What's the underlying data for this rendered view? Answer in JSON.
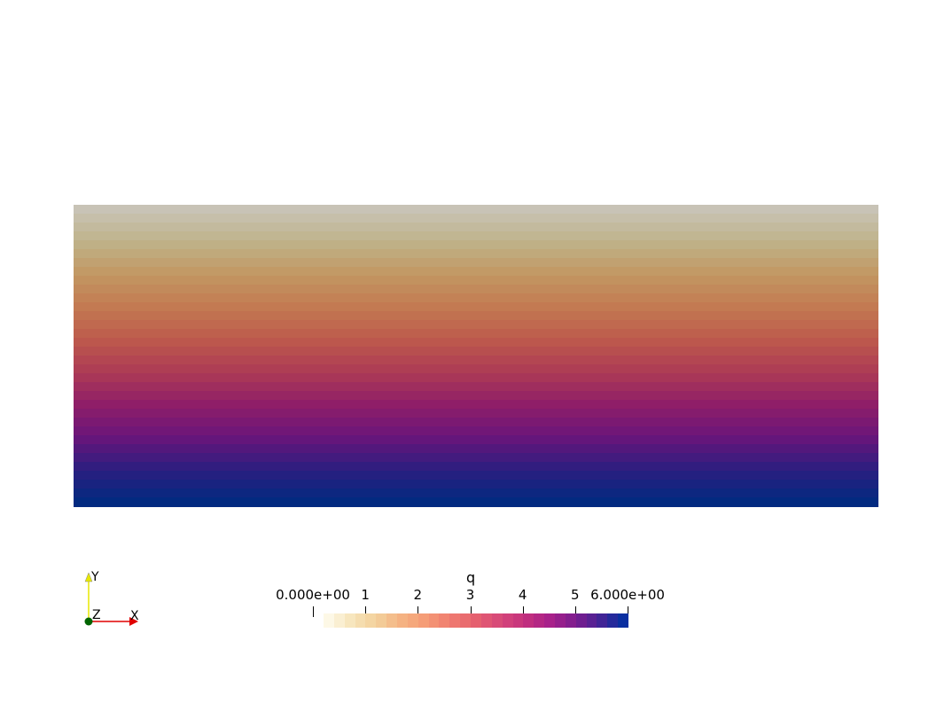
{
  "colorbar": {
    "title": "q",
    "range": [
      0,
      6
    ],
    "ticks": [
      {
        "value": 0,
        "label": "0.000e+00"
      },
      {
        "value": 1,
        "label": "1"
      },
      {
        "value": 2,
        "label": "2"
      },
      {
        "value": 3,
        "label": "3"
      },
      {
        "value": 4,
        "label": "4"
      },
      {
        "value": 5,
        "label": "5"
      },
      {
        "value": 6,
        "label": "6.000e+00"
      }
    ],
    "colormap": [
      "#fdf8e6",
      "#f6e3b7",
      "#f3cf9a",
      "#f5b282",
      "#f59a75",
      "#ef7b70",
      "#e5606f",
      "#d6477a",
      "#c4307d",
      "#a8218a",
      "#7e1d8f",
      "#4a2294",
      "#0a2fa0"
    ]
  },
  "field": {
    "scalar": "q",
    "top_value": 0.3,
    "bottom_value": 6.0,
    "top_colors": [
      "#c8c3b6",
      "#bfb38a",
      "#c29762",
      "#c37a52",
      "#bd5a4c",
      "#ad3b55",
      "#8f1e68",
      "#6a157a",
      "#2c1e80",
      "#022a80"
    ]
  },
  "axes_triad": {
    "x_label": "X",
    "y_label": "Y",
    "z_label": "Z",
    "x_color": "#e00000",
    "y_color": "#e8e800",
    "z_color": "#006400"
  }
}
